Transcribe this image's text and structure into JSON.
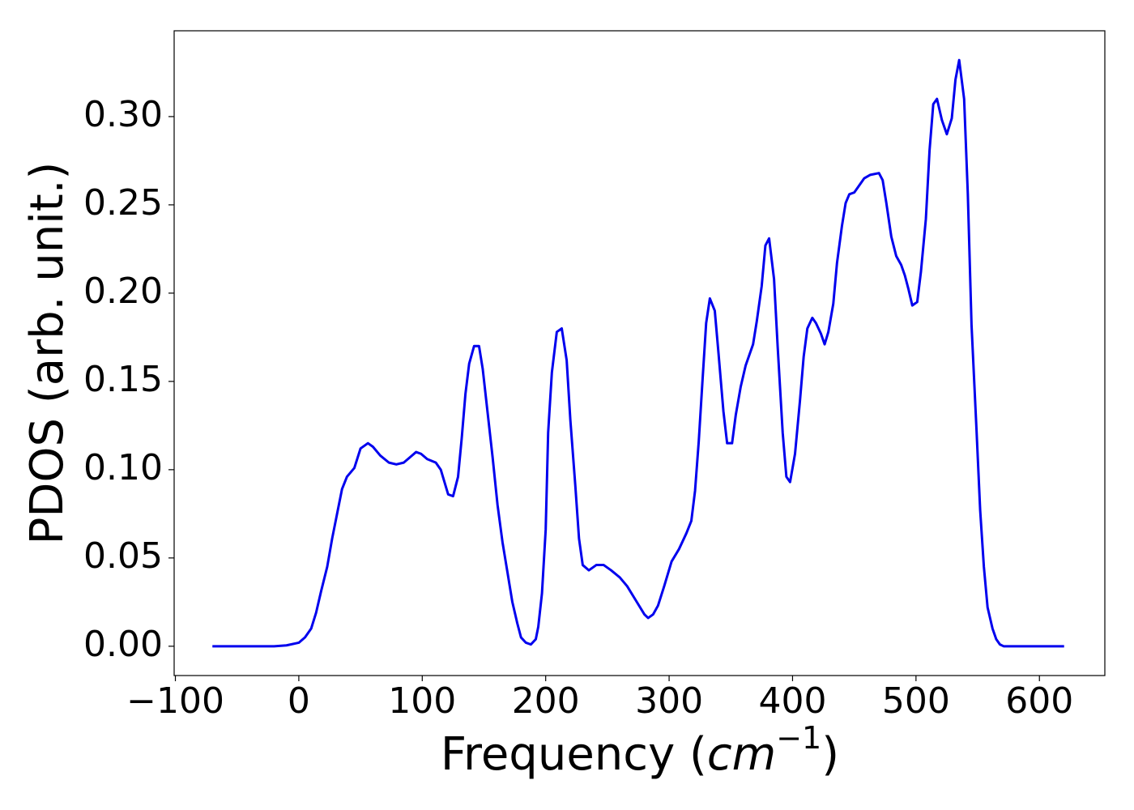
{
  "chart_data": {
    "type": "line",
    "xlabel": [
      "Frequency (",
      "cm",
      "−1",
      ")"
    ],
    "ylabel": "PDOS (arb. unit.)",
    "xlim": [
      -101,
      653
    ],
    "ylim": [
      -0.0166,
      0.3486
    ],
    "xticks": [
      {
        "value": -100,
        "label": "−100"
      },
      0,
      100,
      200,
      300,
      400,
      500,
      600
    ],
    "yticks": [
      {
        "value": 0,
        "label": "0.00"
      },
      {
        "value": 0.05,
        "label": "0.05"
      },
      {
        "value": 0.1,
        "label": "0.10"
      },
      {
        "value": 0.15,
        "label": "0.15"
      },
      {
        "value": 0.2,
        "label": "0.20"
      },
      {
        "value": 0.25,
        "label": "0.25"
      },
      {
        "value": 0.3,
        "label": "0.30"
      }
    ],
    "grid": false,
    "series": [
      {
        "color": "#0000ee",
        "x": [
          -70,
          -20,
          -10,
          0,
          5,
          10,
          14,
          18,
          23,
          27,
          31,
          35,
          39,
          45,
          50,
          56,
          60,
          66,
          73,
          79,
          85,
          90,
          95,
          99,
          104,
          111,
          115,
          121,
          125,
          129,
          132,
          135,
          138,
          142,
          146,
          149,
          153,
          157,
          161,
          165,
          169,
          173,
          177,
          180,
          184,
          188,
          192,
          194,
          197,
          200,
          202,
          205,
          209,
          213,
          217,
          220,
          224,
          227,
          230,
          235,
          241,
          247,
          253,
          260,
          266,
          273,
          280,
          283,
          287,
          291,
          296,
          302,
          308,
          314,
          318,
          321,
          324,
          327,
          330,
          333,
          337,
          340,
          344,
          347,
          351,
          354,
          358,
          362,
          368,
          371,
          375,
          378,
          381,
          385,
          388,
          392,
          395,
          398,
          402,
          406,
          409,
          412,
          416,
          419,
          423,
          426,
          429,
          433,
          436,
          440,
          443,
          446,
          450,
          453,
          458,
          463,
          470,
          473,
          476,
          480,
          484,
          488,
          491,
          494,
          497,
          501,
          504,
          508,
          511,
          514,
          517,
          521,
          525,
          529,
          532,
          535,
          539,
          542,
          545,
          549,
          552,
          555,
          558,
          562,
          565,
          568,
          571,
          620
        ],
        "values": [
          0,
          0,
          0.0005,
          0.002,
          0.005,
          0.01,
          0.019,
          0.031,
          0.045,
          0.061,
          0.075,
          0.089,
          0.096,
          0.101,
          0.112,
          0.115,
          0.113,
          0.108,
          0.104,
          0.103,
          0.104,
          0.107,
          0.11,
          0.109,
          0.106,
          0.104,
          0.1,
          0.086,
          0.085,
          0.096,
          0.118,
          0.143,
          0.16,
          0.17,
          0.17,
          0.157,
          0.132,
          0.107,
          0.08,
          0.059,
          0.042,
          0.025,
          0.013,
          0.005,
          0.002,
          0.001,
          0.004,
          0.011,
          0.03,
          0.066,
          0.121,
          0.155,
          0.178,
          0.18,
          0.162,
          0.128,
          0.091,
          0.061,
          0.046,
          0.043,
          0.046,
          0.046,
          0.043,
          0.039,
          0.034,
          0.026,
          0.018,
          0.016,
          0.018,
          0.023,
          0.034,
          0.048,
          0.055,
          0.064,
          0.071,
          0.088,
          0.116,
          0.15,
          0.183,
          0.197,
          0.19,
          0.166,
          0.133,
          0.115,
          0.115,
          0.131,
          0.147,
          0.159,
          0.171,
          0.184,
          0.204,
          0.227,
          0.231,
          0.208,
          0.169,
          0.121,
          0.096,
          0.093,
          0.109,
          0.139,
          0.164,
          0.18,
          0.186,
          0.183,
          0.177,
          0.171,
          0.178,
          0.194,
          0.217,
          0.238,
          0.251,
          0.256,
          0.257,
          0.26,
          0.265,
          0.267,
          0.268,
          0.264,
          0.251,
          0.232,
          0.221,
          0.216,
          0.21,
          0.202,
          0.193,
          0.195,
          0.212,
          0.242,
          0.281,
          0.307,
          0.31,
          0.298,
          0.29,
          0.299,
          0.321,
          0.332,
          0.31,
          0.256,
          0.182,
          0.123,
          0.077,
          0.045,
          0.022,
          0.01,
          0.004,
          0.001,
          0,
          0
        ]
      }
    ]
  }
}
